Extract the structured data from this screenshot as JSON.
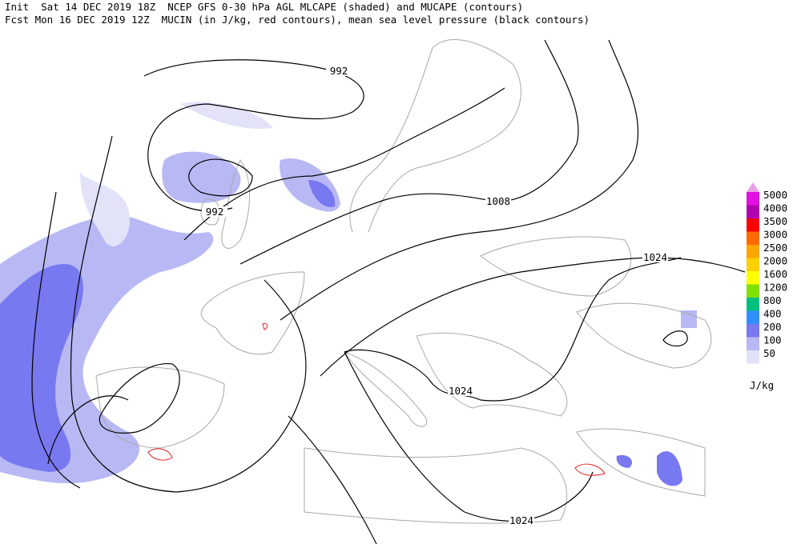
{
  "header": {
    "line1": "Init  Sat 14 DEC 2019 18Z  NCEP GFS 0-30 hPa AGL MLCAPE (shaded) and MUCAPE (contours)",
    "line2": "Fcst Mon 16 DEC 2019 12Z  MUCIN (in J/kg, red contours), mean sea level pressure (black contours)"
  },
  "contour_labels": [
    992,
    992,
    1008,
    1024,
    1024,
    1024
  ],
  "legend": {
    "unit": "J/kg",
    "items": [
      {
        "label": 5000,
        "color": "#e010e0"
      },
      {
        "label": 4000,
        "color": "#b000b0"
      },
      {
        "label": 3500,
        "color": "#ff0000"
      },
      {
        "label": 3000,
        "color": "#ff6a00"
      },
      {
        "label": 2500,
        "color": "#ffa500"
      },
      {
        "label": 2000,
        "color": "#ffd000"
      },
      {
        "label": 1600,
        "color": "#ffff00"
      },
      {
        "label": 1200,
        "color": "#80e000"
      },
      {
        "label": 800,
        "color": "#00c080"
      },
      {
        "label": 400,
        "color": "#3090ff"
      },
      {
        "label": 200,
        "color": "#7878f0"
      },
      {
        "label": 100,
        "color": "#b8b8f4"
      },
      {
        "label": 50,
        "color": "#e2e2f8"
      }
    ]
  }
}
